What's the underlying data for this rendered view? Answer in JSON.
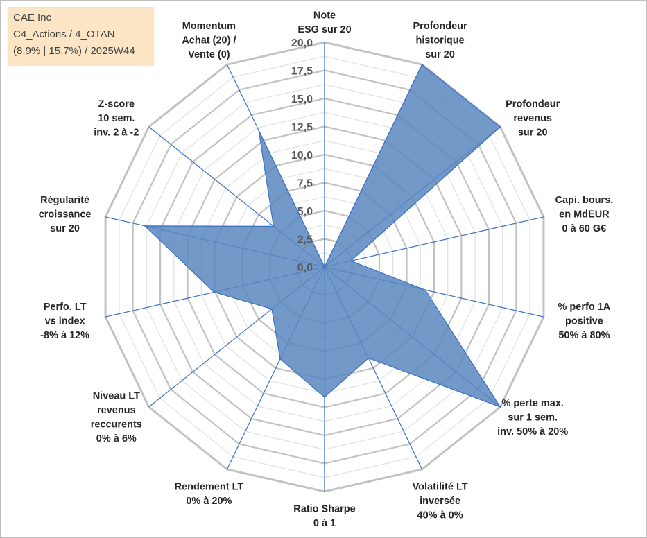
{
  "title": {
    "line1": "CAE Inc",
    "line2": "C4_Actions / 4_OTAN",
    "line3": "(8,9% | 15,7%) / 2025W44"
  },
  "colors": {
    "fill": "#5b87bf",
    "stroke": "#3a6fc4",
    "grid": "#c8c8c8",
    "spoke": "#3a6fc4",
    "title_bg": "#fbe5c4"
  },
  "chart_data": {
    "type": "radar",
    "rmin": 0,
    "rmax": 20,
    "ticks": [
      "0,0",
      "2,5",
      "5,0",
      "7,5",
      "10,0",
      "12,5",
      "15,0",
      "17,5",
      "20,0"
    ],
    "axes": [
      {
        "label": [
          "Note",
          "ESG sur 20"
        ],
        "value": 0
      },
      {
        "label": [
          "Profondeur",
          "historique",
          "sur 20"
        ],
        "value": 20
      },
      {
        "label": [
          "Profondeur",
          "revenus",
          "sur 20"
        ],
        "value": 20
      },
      {
        "label": [
          "Capi. bours.",
          "en MdEUR",
          "0 à 60 G€"
        ],
        "value": 2.4
      },
      {
        "label": [
          "% perfo 1A",
          "positive",
          "50% à 80%"
        ],
        "value": 9.2
      },
      {
        "label": [
          "% perte max.",
          "sur 1 sem.",
          "inv. 50% à 20%"
        ],
        "value": 20
      },
      {
        "label": [
          "Volatilité LT",
          "inversée",
          "40% à 0%"
        ],
        "value": 9
      },
      {
        "label": [
          "Ratio Sharpe",
          "0 à 1"
        ],
        "value": 11.6
      },
      {
        "label": [
          "Rendement LT",
          "0% à 20%"
        ],
        "value": 9.1
      },
      {
        "label": [
          "Niveau LT",
          "revenus",
          "reccurents",
          "0% à 6%"
        ],
        "value": 6
      },
      {
        "label": [
          "Perfo. LT",
          "vs index",
          "-8% à 12%"
        ],
        "value": 10.1
      },
      {
        "label": [
          "Régularité",
          "croissance",
          "sur 20"
        ],
        "value": 16.4
      },
      {
        "label": [
          "Z-score",
          "10 sem.",
          "inv. 2 à -2"
        ],
        "value": 5.8
      },
      {
        "label": [
          "Momentum",
          "Achat (20) /",
          "Vente (0)"
        ],
        "value": 13.5
      }
    ]
  }
}
